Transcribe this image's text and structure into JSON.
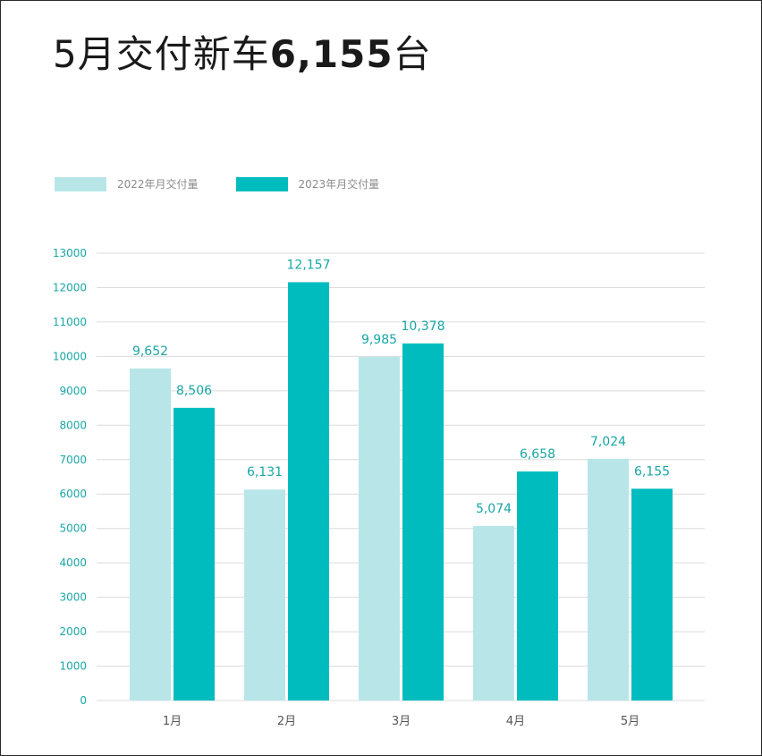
{
  "title": {
    "prefix": "5月交付新车",
    "number": "6,155",
    "suffix": "台"
  },
  "colors": {
    "series1": "#b8e6e8",
    "series2": "#00bcbe",
    "grid": "#dcdcdc",
    "tick": "#1aa6a6"
  },
  "chart_data": {
    "type": "bar",
    "categories": [
      "1月",
      "2月",
      "3月",
      "4月",
      "5月"
    ],
    "series": [
      {
        "name": "2022年月交付量",
        "values": [
          9652,
          6131,
          9985,
          5074,
          7024
        ],
        "labels": [
          "9,652",
          "6,131",
          "9,985",
          "5,074",
          "7,024"
        ]
      },
      {
        "name": "2023年月交付量",
        "values": [
          8506,
          12157,
          10378,
          6658,
          6155
        ],
        "labels": [
          "8,506",
          "12,157",
          "10,378",
          "6,658",
          "6,155"
        ]
      }
    ],
    "yticks": [
      0,
      1000,
      2000,
      3000,
      4000,
      5000,
      6000,
      7000,
      8000,
      9000,
      10000,
      11000,
      12000,
      13000
    ],
    "ylim": [
      0,
      13000
    ],
    "grid": true,
    "legend": "top-left"
  }
}
